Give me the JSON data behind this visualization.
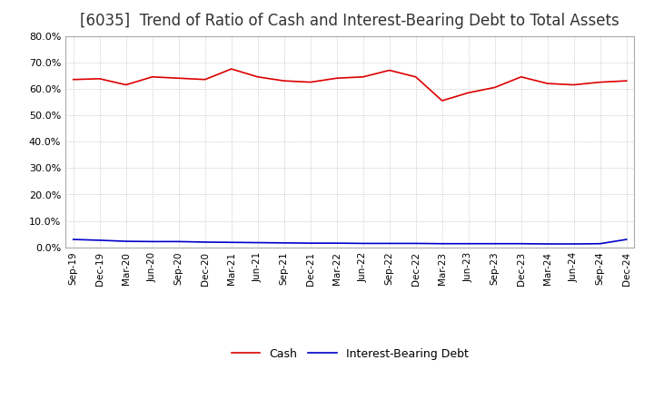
{
  "title": "[6035]  Trend of Ratio of Cash and Interest-Bearing Debt to Total Assets",
  "x_labels": [
    "Sep-19",
    "Dec-19",
    "Mar-20",
    "Jun-20",
    "Sep-20",
    "Dec-20",
    "Mar-21",
    "Jun-21",
    "Sep-21",
    "Dec-21",
    "Mar-22",
    "Jun-22",
    "Sep-22",
    "Dec-22",
    "Mar-23",
    "Jun-23",
    "Sep-23",
    "Dec-23",
    "Mar-24",
    "Jun-24",
    "Sep-24",
    "Dec-24"
  ],
  "cash": [
    63.5,
    63.8,
    61.5,
    64.5,
    64.0,
    63.5,
    67.5,
    64.5,
    63.0,
    62.5,
    64.0,
    64.5,
    67.0,
    64.5,
    55.5,
    58.5,
    60.5,
    64.5,
    62.0,
    61.5,
    62.5,
    63.0
  ],
  "interest_bearing_debt": [
    3.0,
    2.7,
    2.3,
    2.2,
    2.2,
    2.0,
    1.9,
    1.8,
    1.7,
    1.6,
    1.6,
    1.5,
    1.5,
    1.5,
    1.4,
    1.4,
    1.4,
    1.4,
    1.3,
    1.3,
    1.4,
    3.0
  ],
  "cash_color": "#dd0000",
  "debt_color": "#0000cc",
  "ylim": [
    0,
    80
  ],
  "yticks": [
    0,
    10,
    20,
    30,
    40,
    50,
    60,
    70,
    80
  ],
  "background_color": "#ffffff",
  "grid_color": "#aaaaaa",
  "title_fontsize": 12,
  "legend_labels": [
    "Cash",
    "Interest-Bearing Debt"
  ]
}
